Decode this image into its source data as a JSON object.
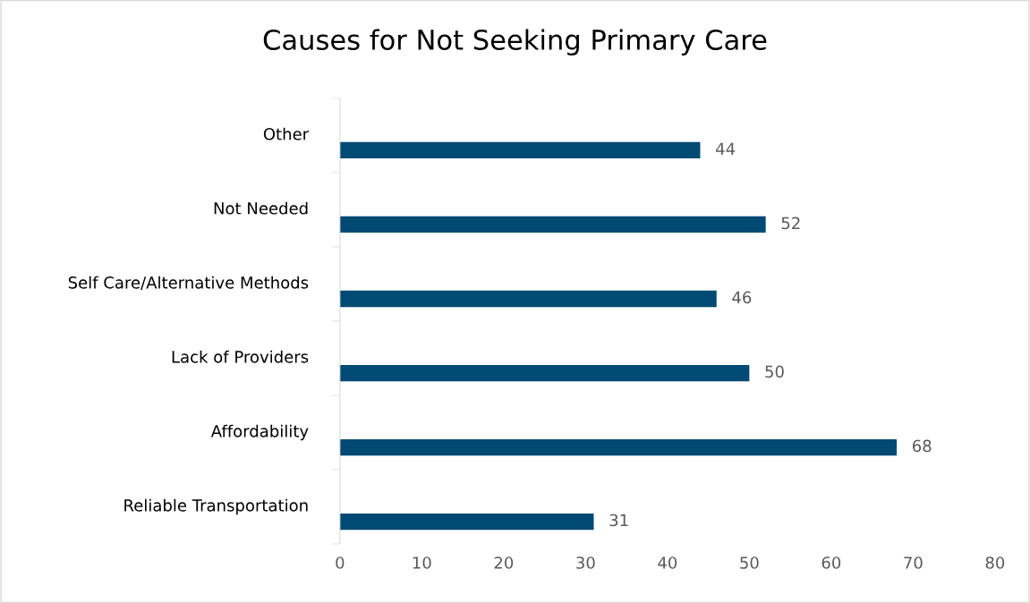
{
  "chart_data": {
    "type": "bar",
    "orientation": "horizontal",
    "title": "Causes for Not Seeking Primary Care",
    "categories": [
      "Other",
      "Not Needed",
      "Self Care/Alternative Methods",
      "Lack of Providers",
      "Affordability",
      "Reliable Transportation"
    ],
    "values": [
      44,
      52,
      46,
      50,
      68,
      31
    ],
    "color": "#004a73",
    "xlim": [
      0,
      80
    ],
    "xticks": [
      0,
      10,
      20,
      30,
      40,
      50,
      60,
      70,
      80
    ],
    "grid": false,
    "data_labels": true
  }
}
